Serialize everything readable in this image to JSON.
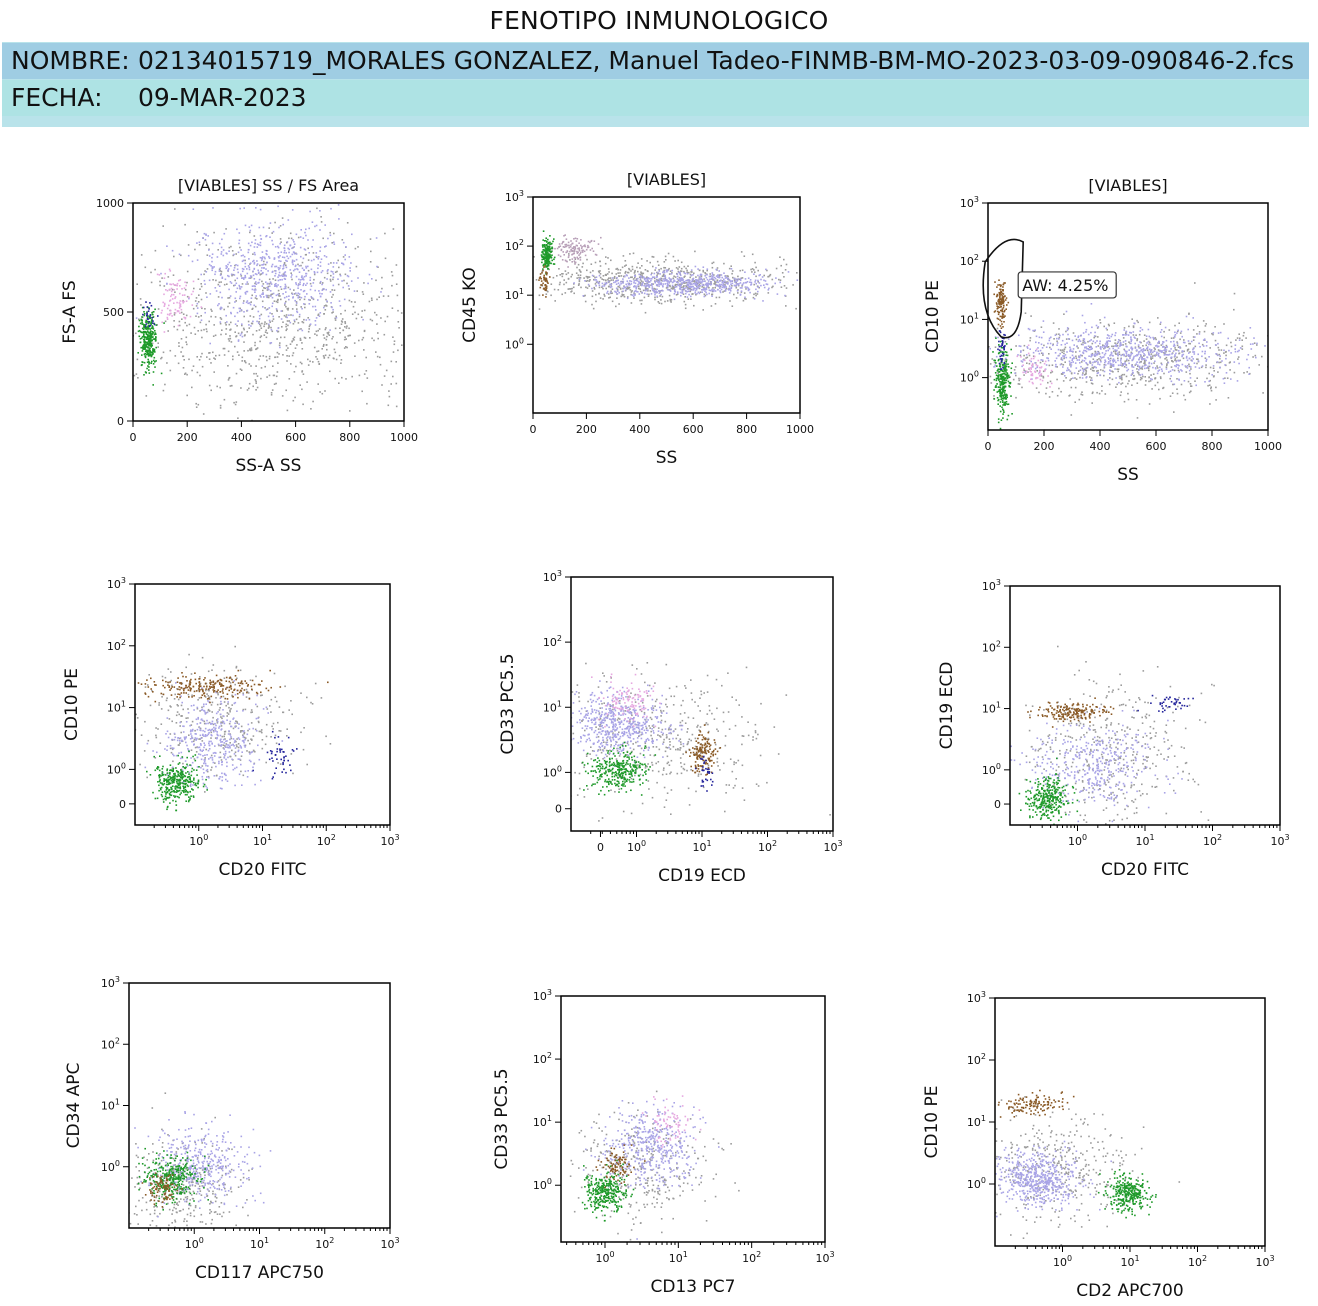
{
  "report": {
    "title": "FENOTIPO INMUNOLOGICO",
    "name_label": "NOMBRE:",
    "name_value": "02134015719_MORALES GONZALEZ, Manuel Tadeo-FINMB-BM-MO-2023-03-09-090846-2.fcs",
    "date_label": "FECHA:",
    "date_value": "09-MAR-2023"
  },
  "colors": {
    "header_band": "#b9e3ea",
    "name_row": "#9fcde3",
    "date_row": "#aee3e4",
    "population_colors": {
      "debris_gray": "#9c9c9c",
      "myeloid_lavender": "#a9a4e6",
      "monocyte_pink": "#e6a9e0",
      "lymphocyte_green": "#1f9a2a",
      "cd10_brown": "#8a5a26",
      "b_mature_blue": "#25259c"
    }
  },
  "chart_data": [
    {
      "type": "scatter",
      "title": "[VIABLES] SS / FS Area",
      "xlabel": "SS-A SS",
      "ylabel": "FS-A FS",
      "xscale": "linear",
      "yscale": "linear",
      "xlim": [
        0,
        1000
      ],
      "ylim": [
        0,
        1000
      ],
      "xticks": [
        "0",
        "200",
        "400",
        "600",
        "800",
        "1000"
      ],
      "yticks": [
        "0",
        "500",
        "1000"
      ],
      "populations": [
        {
          "name": "debris",
          "color": "#9c9c9c",
          "n": 900,
          "cx": 500,
          "cy": 450,
          "sx": 280,
          "sy": 210
        },
        {
          "name": "myeloid",
          "color": "#a9a4e6",
          "n": 650,
          "cx": 520,
          "cy": 680,
          "sx": 150,
          "sy": 120
        },
        {
          "name": "monocytes",
          "color": "#e6a9e0",
          "n": 90,
          "cx": 150,
          "cy": 560,
          "sx": 30,
          "sy": 60
        },
        {
          "name": "lymphocytes",
          "color": "#1f9a2a",
          "n": 320,
          "cx": 55,
          "cy": 370,
          "sx": 15,
          "sy": 65
        },
        {
          "name": "b_mature",
          "color": "#25259c",
          "n": 25,
          "cx": 55,
          "cy": 500,
          "sx": 12,
          "sy": 40
        }
      ]
    },
    {
      "type": "scatter",
      "title": "[VIABLES]",
      "xlabel": "SS",
      "ylabel": "CD45 KO",
      "xscale": "linear",
      "yscale": "log",
      "xlim": [
        0,
        1000
      ],
      "ylim": [
        -1.4,
        3
      ],
      "xticks": [
        "0",
        "200",
        "400",
        "600",
        "800",
        "1000"
      ],
      "yticks": [
        "10^0",
        "10^1",
        "10^2",
        "10^3"
      ],
      "populations": [
        {
          "name": "debris",
          "color": "#9c9c9c",
          "n": 700,
          "cx": 450,
          "cy": 1.3,
          "sx": 250,
          "sy": 0.22
        },
        {
          "name": "myeloid",
          "color": "#a9a4e6",
          "n": 600,
          "cx": 560,
          "cy": 1.25,
          "sx": 160,
          "sy": 0.12
        },
        {
          "name": "monocytes",
          "color": "#b8a0b8",
          "n": 120,
          "cx": 150,
          "cy": 1.95,
          "sx": 40,
          "sy": 0.12
        },
        {
          "name": "lymphocytes",
          "color": "#1f9a2a",
          "n": 180,
          "cx": 50,
          "cy": 1.85,
          "sx": 10,
          "sy": 0.15
        },
        {
          "name": "cd10_positive",
          "color": "#8a5a26",
          "n": 50,
          "cx": 40,
          "cy": 1.3,
          "sx": 8,
          "sy": 0.12
        }
      ]
    },
    {
      "type": "scatter",
      "title": "[VIABLES]",
      "xlabel": "SS",
      "ylabel": "CD10 PE",
      "xscale": "linear",
      "yscale": "log",
      "xlim": [
        0,
        1000
      ],
      "ylim": [
        -0.9,
        3
      ],
      "xticks": [
        "0",
        "200",
        "400",
        "600",
        "800",
        "1000"
      ],
      "yticks": [
        "10^0",
        "10^1",
        "10^2",
        "10^3"
      ],
      "gate": {
        "label": "AW: 4.25%"
      },
      "populations": [
        {
          "name": "debris",
          "color": "#9c9c9c",
          "n": 650,
          "cx": 500,
          "cy": 0.3,
          "sx": 270,
          "sy": 0.35
        },
        {
          "name": "myeloid",
          "color": "#a9a4e6",
          "n": 700,
          "cx": 480,
          "cy": 0.45,
          "sx": 200,
          "sy": 0.22
        },
        {
          "name": "monocytes",
          "color": "#e6a9e0",
          "n": 60,
          "cx": 160,
          "cy": 0.15,
          "sx": 25,
          "sy": 0.15
        },
        {
          "name": "lymphocytes",
          "color": "#1f9a2a",
          "n": 260,
          "cx": 50,
          "cy": -0.1,
          "sx": 12,
          "sy": 0.28
        },
        {
          "name": "b_mature",
          "color": "#25259c",
          "n": 40,
          "cx": 50,
          "cy": 0.5,
          "sx": 8,
          "sy": 0.2
        },
        {
          "name": "cd10_positive",
          "color": "#8a5a26",
          "n": 130,
          "cx": 45,
          "cy": 1.3,
          "sx": 10,
          "sy": 0.18
        }
      ]
    },
    {
      "type": "scatter",
      "title": "",
      "xlabel": "CD20 FITC",
      "ylabel": "CD10 PE",
      "xscale": "log",
      "yscale": "log",
      "xlim": [
        -1,
        3
      ],
      "ylim": [
        -0.9,
        3
      ],
      "xticks": [
        "10^0",
        "10^1",
        "10^2",
        "10^3"
      ],
      "yticks": [
        "0",
        "10^0",
        "10^1",
        "10^2",
        "10^3"
      ],
      "populations": [
        {
          "name": "debris",
          "color": "#9c9c9c",
          "n": 350,
          "cx": 0.3,
          "cy": 0.8,
          "sx": 0.6,
          "sy": 0.45
        },
        {
          "name": "myeloid",
          "color": "#a9a4e6",
          "n": 380,
          "cx": 0.2,
          "cy": 0.45,
          "sx": 0.35,
          "sy": 0.35
        },
        {
          "name": "lymphocytes",
          "color": "#1f9a2a",
          "n": 320,
          "cx": -0.35,
          "cy": -0.2,
          "sx": 0.18,
          "sy": 0.17
        },
        {
          "name": "cd10_positive",
          "color": "#8a5a26",
          "n": 220,
          "cx": 0.1,
          "cy": 1.35,
          "sx": 0.5,
          "sy": 0.09
        },
        {
          "name": "b_mature",
          "color": "#25259c",
          "n": 45,
          "cx": 1.25,
          "cy": 0.25,
          "sx": 0.12,
          "sy": 0.15
        }
      ]
    },
    {
      "type": "scatter",
      "title": "",
      "xlabel": "CD19 ECD",
      "ylabel": "CD33 PC5.5",
      "xscale": "log",
      "yscale": "log",
      "xlim": [
        -1.0,
        3
      ],
      "ylim": [
        -0.9,
        3
      ],
      "xticks": [
        "0",
        "10^0",
        "10^1",
        "10^2",
        "10^3"
      ],
      "yticks": [
        "0",
        "10^0",
        "10^1",
        "10^2",
        "10^3"
      ],
      "populations": [
        {
          "name": "debris",
          "color": "#9c9c9c",
          "n": 420,
          "cx": 0.4,
          "cy": 0.5,
          "sx": 0.8,
          "sy": 0.5
        },
        {
          "name": "myeloid",
          "color": "#a9a4e6",
          "n": 520,
          "cx": -0.3,
          "cy": 0.75,
          "sx": 0.35,
          "sy": 0.22
        },
        {
          "name": "monocytes",
          "color": "#e6a9e0",
          "n": 110,
          "cx": -0.15,
          "cy": 1.1,
          "sx": 0.2,
          "sy": 0.15
        },
        {
          "name": "lymphocytes",
          "color": "#1f9a2a",
          "n": 300,
          "cx": -0.3,
          "cy": 0.05,
          "sx": 0.22,
          "sy": 0.15
        },
        {
          "name": "cd10_positive",
          "color": "#8a5a26",
          "n": 140,
          "cx": 1.0,
          "cy": 0.3,
          "sx": 0.1,
          "sy": 0.15
        },
        {
          "name": "b_mature",
          "color": "#25259c",
          "n": 30,
          "cx": 1.05,
          "cy": 0.05,
          "sx": 0.08,
          "sy": 0.15
        }
      ]
    },
    {
      "type": "scatter",
      "title": "",
      "xlabel": "CD20 FITC",
      "ylabel": "CD19 ECD",
      "xscale": "log",
      "yscale": "log",
      "xlim": [
        -1,
        3
      ],
      "ylim": [
        -0.9,
        3
      ],
      "xticks": [
        "10^0",
        "10^1",
        "10^2",
        "10^3"
      ],
      "yticks": [
        "0",
        "10^0",
        "10^1",
        "10^2",
        "10^3"
      ],
      "populations": [
        {
          "name": "debris",
          "color": "#9c9c9c",
          "n": 380,
          "cx": 0.5,
          "cy": 0.3,
          "sx": 0.6,
          "sy": 0.55
        },
        {
          "name": "myeloid",
          "color": "#a9a4e6",
          "n": 380,
          "cx": 0.2,
          "cy": 0.1,
          "sx": 0.45,
          "sy": 0.35
        },
        {
          "name": "lymphocytes",
          "color": "#1f9a2a",
          "n": 300,
          "cx": -0.45,
          "cy": -0.45,
          "sx": 0.15,
          "sy": 0.17
        },
        {
          "name": "cd10_positive",
          "color": "#8a5a26",
          "n": 180,
          "cx": -0.1,
          "cy": 0.95,
          "sx": 0.25,
          "sy": 0.07
        },
        {
          "name": "b_mature",
          "color": "#25259c",
          "n": 40,
          "cx": 1.35,
          "cy": 1.1,
          "sx": 0.15,
          "sy": 0.07
        }
      ]
    },
    {
      "type": "scatter",
      "title": "",
      "xlabel": "CD117 APC750",
      "ylabel": "CD34 APC",
      "xscale": "log",
      "yscale": "log",
      "xlim": [
        -1,
        3
      ],
      "ylim": [
        -1,
        3
      ],
      "xticks": [
        "10^0",
        "10^1",
        "10^2",
        "10^3"
      ],
      "yticks": [
        "10^0",
        "10^1",
        "10^2",
        "10^3"
      ],
      "populations": [
        {
          "name": "debris",
          "color": "#9c9c9c",
          "n": 320,
          "cx": -0.2,
          "cy": -0.3,
          "sx": 0.45,
          "sy": 0.4
        },
        {
          "name": "myeloid",
          "color": "#a9a4e6",
          "n": 380,
          "cx": 0.1,
          "cy": 0.05,
          "sx": 0.35,
          "sy": 0.3
        },
        {
          "name": "lymphocytes",
          "color": "#1f9a2a",
          "n": 300,
          "cx": -0.35,
          "cy": -0.2,
          "sx": 0.2,
          "sy": 0.18
        },
        {
          "name": "cd10_positive",
          "color": "#8a5a26",
          "n": 90,
          "cx": -0.5,
          "cy": -0.35,
          "sx": 0.12,
          "sy": 0.12
        }
      ]
    },
    {
      "type": "scatter",
      "title": "",
      "xlabel": "CD13 PC7",
      "ylabel": "CD33 PC5.5",
      "xscale": "log",
      "yscale": "log",
      "xlim": [
        -0.6,
        3
      ],
      "ylim": [
        -0.9,
        3
      ],
      "xticks": [
        "10^0",
        "10^1",
        "10^2",
        "10^3"
      ],
      "yticks": [
        "10^0",
        "10^1",
        "10^2",
        "10^3"
      ],
      "populations": [
        {
          "name": "debris",
          "color": "#9c9c9c",
          "n": 300,
          "cx": 0.5,
          "cy": 0.3,
          "sx": 0.45,
          "sy": 0.45
        },
        {
          "name": "myeloid",
          "color": "#a9a4e6",
          "n": 420,
          "cx": 0.6,
          "cy": 0.6,
          "sx": 0.3,
          "sy": 0.3
        },
        {
          "name": "monocytes",
          "color": "#e6a9e0",
          "n": 70,
          "cx": 0.9,
          "cy": 1.0,
          "sx": 0.15,
          "sy": 0.15
        },
        {
          "name": "lymphocytes",
          "color": "#1f9a2a",
          "n": 300,
          "cx": 0.0,
          "cy": -0.1,
          "sx": 0.15,
          "sy": 0.17
        },
        {
          "name": "cd10_positive",
          "color": "#8a5a26",
          "n": 90,
          "cx": 0.15,
          "cy": 0.3,
          "sx": 0.1,
          "sy": 0.12
        }
      ]
    },
    {
      "type": "scatter",
      "title": "",
      "xlabel": "CD2 APC700",
      "ylabel": "CD10 PE",
      "xscale": "log",
      "yscale": "log",
      "xlim": [
        -1,
        3
      ],
      "ylim": [
        -1,
        3
      ],
      "xticks": [
        "10^0",
        "10^1",
        "10^2",
        "10^3"
      ],
      "yticks": [
        "10^0",
        "10^1",
        "10^2",
        "10^3"
      ],
      "populations": [
        {
          "name": "debris",
          "color": "#9c9c9c",
          "n": 360,
          "cx": -0.1,
          "cy": 0.3,
          "sx": 0.55,
          "sy": 0.45
        },
        {
          "name": "myeloid",
          "color": "#a9a4e6",
          "n": 520,
          "cx": -0.35,
          "cy": 0.1,
          "sx": 0.28,
          "sy": 0.22
        },
        {
          "name": "lymphocytes",
          "color": "#1f9a2a",
          "n": 300,
          "cx": 0.95,
          "cy": -0.15,
          "sx": 0.15,
          "sy": 0.13
        },
        {
          "name": "cd10_positive",
          "color": "#8a5a26",
          "n": 120,
          "cx": -0.5,
          "cy": 1.3,
          "sx": 0.25,
          "sy": 0.08
        }
      ]
    }
  ]
}
